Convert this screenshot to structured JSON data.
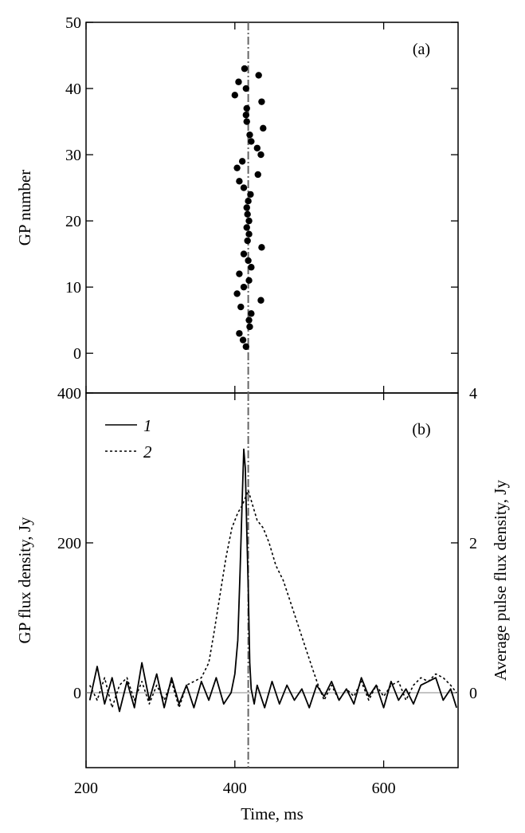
{
  "chart_data": [
    {
      "panel_label": "(a)",
      "type": "scatter",
      "ylabel": "GP number",
      "ylim": [
        -6,
        50
      ],
      "xlim": [
        200,
        700
      ],
      "yticks": [
        0,
        10,
        20,
        30,
        40,
        50
      ],
      "xticks": [
        200,
        400,
        600
      ],
      "reference_line_x": 418,
      "points": [
        {
          "x": 415,
          "y": 1
        },
        {
          "x": 411,
          "y": 2
        },
        {
          "x": 406,
          "y": 3
        },
        {
          "x": 420,
          "y": 4
        },
        {
          "x": 419,
          "y": 5
        },
        {
          "x": 422,
          "y": 6
        },
        {
          "x": 408,
          "y": 7
        },
        {
          "x": 435,
          "y": 8
        },
        {
          "x": 403,
          "y": 9
        },
        {
          "x": 412,
          "y": 10
        },
        {
          "x": 419,
          "y": 11
        },
        {
          "x": 406,
          "y": 12
        },
        {
          "x": 422,
          "y": 13
        },
        {
          "x": 418,
          "y": 14
        },
        {
          "x": 412,
          "y": 15
        },
        {
          "x": 436,
          "y": 16
        },
        {
          "x": 417,
          "y": 17
        },
        {
          "x": 419,
          "y": 18
        },
        {
          "x": 416,
          "y": 19
        },
        {
          "x": 419,
          "y": 20
        },
        {
          "x": 417,
          "y": 21
        },
        {
          "x": 416,
          "y": 22
        },
        {
          "x": 418,
          "y": 23
        },
        {
          "x": 421,
          "y": 24
        },
        {
          "x": 412,
          "y": 25
        },
        {
          "x": 406,
          "y": 26
        },
        {
          "x": 431,
          "y": 27
        },
        {
          "x": 403,
          "y": 28
        },
        {
          "x": 410,
          "y": 29
        },
        {
          "x": 435,
          "y": 30
        },
        {
          "x": 430,
          "y": 31
        },
        {
          "x": 422,
          "y": 32
        },
        {
          "x": 420,
          "y": 33
        },
        {
          "x": 438,
          "y": 34
        },
        {
          "x": 416,
          "y": 35
        },
        {
          "x": 415,
          "y": 36
        },
        {
          "x": 416,
          "y": 37
        },
        {
          "x": 436,
          "y": 38
        },
        {
          "x": 400,
          "y": 39
        },
        {
          "x": 415,
          "y": 40
        },
        {
          "x": 405,
          "y": 41
        },
        {
          "x": 432,
          "y": 42
        },
        {
          "x": 413,
          "y": 43
        }
      ]
    },
    {
      "panel_label": "(b)",
      "type": "line",
      "xlabel": "Time, ms",
      "ylabel": "GP flux density, Jy",
      "ylabel_right": "Average pulse flux density, Jy",
      "xlim": [
        200,
        700
      ],
      "ylim": [
        -100,
        400
      ],
      "ylim_right": [
        -1,
        4
      ],
      "xticks": [
        200,
        400,
        600
      ],
      "yticks": [
        0,
        200,
        400
      ],
      "yticks_right": [
        0,
        2,
        4
      ],
      "reference_line_x": 418,
      "legend": [
        {
          "label": "1",
          "style": "solid"
        },
        {
          "label": "2",
          "style": "dashed"
        }
      ],
      "series": [
        {
          "label": "1",
          "axis": "left",
          "style": "solid",
          "x": [
            205,
            215,
            225,
            235,
            245,
            255,
            265,
            275,
            285,
            295,
            305,
            315,
            325,
            335,
            345,
            355,
            365,
            375,
            385,
            395,
            400,
            404,
            407,
            410,
            412,
            414,
            416,
            418,
            420,
            422,
            426,
            430,
            440,
            450,
            460,
            470,
            480,
            490,
            500,
            510,
            520,
            530,
            540,
            550,
            560,
            570,
            580,
            590,
            600,
            610,
            620,
            630,
            640,
            650,
            660,
            670,
            680,
            690,
            698
          ],
          "y": [
            -10,
            35,
            -15,
            20,
            -25,
            15,
            -20,
            40,
            -10,
            25,
            -20,
            20,
            -15,
            10,
            -20,
            15,
            -10,
            20,
            -15,
            0,
            25,
            70,
            160,
            260,
            325,
            300,
            220,
            140,
            40,
            5,
            -15,
            10,
            -20,
            15,
            -15,
            10,
            -10,
            5,
            -20,
            10,
            -5,
            15,
            -10,
            5,
            -15,
            20,
            -5,
            10,
            -20,
            15,
            -10,
            5,
            -15,
            10,
            15,
            20,
            -10,
            5,
            -20
          ]
        },
        {
          "label": "2",
          "axis": "right",
          "style": "dashed",
          "x": [
            205,
            215,
            225,
            235,
            245,
            255,
            265,
            275,
            285,
            295,
            305,
            315,
            325,
            335,
            345,
            355,
            365,
            372,
            380,
            388,
            396,
            404,
            410,
            414,
            418,
            424,
            430,
            438,
            446,
            455,
            465,
            475,
            485,
            495,
            505,
            512,
            520,
            530,
            540,
            550,
            560,
            570,
            580,
            590,
            600,
            610,
            620,
            630,
            640,
            650,
            660,
            670,
            680,
            690,
            698
          ],
          "y": [
            0.1,
            -0.1,
            0.2,
            -0.2,
            0.1,
            0.2,
            -0.1,
            0.15,
            -0.15,
            0.1,
            -0.1,
            0.15,
            -0.2,
            0.1,
            0.15,
            0.2,
            0.4,
            0.8,
            1.3,
            1.8,
            2.2,
            2.4,
            2.5,
            2.6,
            2.7,
            2.5,
            2.3,
            2.2,
            2.0,
            1.7,
            1.5,
            1.2,
            0.9,
            0.6,
            0.3,
            0.1,
            -0.1,
            0.1,
            -0.1,
            0.05,
            -0.05,
            0.15,
            -0.1,
            0.1,
            -0.05,
            0.1,
            0.15,
            -0.1,
            0.1,
            0.2,
            0.15,
            0.25,
            0.2,
            0.1,
            0.0
          ]
        }
      ]
    }
  ]
}
